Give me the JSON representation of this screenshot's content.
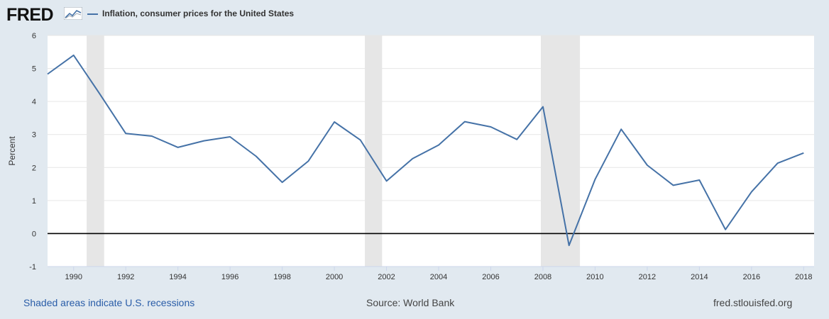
{
  "header": {
    "logo_text": "FRED",
    "logo_icon": "fred-line-graph-icon",
    "legend_label": "Inflation, consumer prices for the United States"
  },
  "colors": {
    "series": "#4572a7",
    "recession": "#e6e6e6",
    "background": "#e1e9f0",
    "plot": "#ffffff",
    "grid": "#e6e6e6",
    "zero_line": "#000000"
  },
  "chart_data": {
    "type": "line",
    "title": "",
    "xlabel": "",
    "ylabel": "Percent",
    "xlim": [
      1989,
      2018.4
    ],
    "ylim": [
      -1,
      6
    ],
    "y_ticks": [
      -1,
      0,
      1,
      2,
      3,
      4,
      5,
      6
    ],
    "x_ticks": [
      1990,
      1992,
      1994,
      1996,
      1998,
      2000,
      2002,
      2004,
      2006,
      2008,
      2010,
      2012,
      2014,
      2016,
      2018
    ],
    "grid": "horizontal",
    "legend": "top-left",
    "series": [
      {
        "name": "Inflation, consumer prices for the United States",
        "x": [
          1989,
          1990,
          1991,
          1992,
          1993,
          1994,
          1995,
          1996,
          1997,
          1998,
          1999,
          2000,
          2001,
          2002,
          2003,
          2004,
          2005,
          2006,
          2007,
          2008,
          2009,
          2010,
          2011,
          2012,
          2013,
          2014,
          2015,
          2016,
          2017,
          2018
        ],
        "values": [
          4.83,
          5.4,
          4.23,
          3.03,
          2.95,
          2.61,
          2.81,
          2.93,
          2.34,
          1.55,
          2.19,
          3.38,
          2.83,
          1.59,
          2.27,
          2.68,
          3.39,
          3.23,
          2.85,
          3.84,
          -0.36,
          1.64,
          3.16,
          2.07,
          1.46,
          1.62,
          0.12,
          1.26,
          2.13,
          2.44
        ]
      }
    ],
    "recessions": [
      {
        "start": 1990.5,
        "end": 1991.17
      },
      {
        "start": 2001.17,
        "end": 2001.83
      },
      {
        "start": 2007.92,
        "end": 2009.42
      }
    ]
  },
  "footer": {
    "left": "Shaded areas indicate U.S. recessions",
    "center": "Source: World Bank",
    "right": "fred.stlouisfed.org"
  }
}
